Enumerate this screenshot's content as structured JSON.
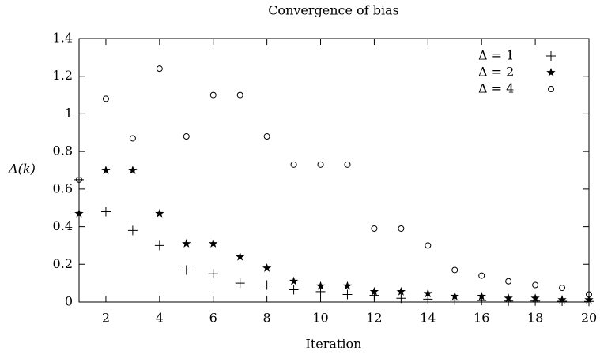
{
  "chart_data": {
    "type": "scatter",
    "title": "Convergence of bias",
    "xlabel": "Iteration",
    "ylabel": "A(k)",
    "x": [
      1,
      2,
      3,
      4,
      5,
      6,
      7,
      8,
      9,
      10,
      11,
      12,
      13,
      14,
      15,
      16,
      17,
      18,
      19,
      20
    ],
    "xlim": [
      1,
      20
    ],
    "xticks": [
      2,
      4,
      6,
      8,
      10,
      12,
      14,
      16,
      18,
      20
    ],
    "ylim": [
      0,
      1.4
    ],
    "yticks": [
      0,
      0.2,
      0.4,
      0.6,
      0.8,
      1,
      1.2,
      1.4
    ],
    "legend": "upper right",
    "series": [
      {
        "name": "Δ = 1",
        "marker": "plus",
        "color": "#000000",
        "values": [
          0.65,
          0.48,
          0.38,
          0.3,
          0.17,
          0.15,
          0.1,
          0.09,
          0.065,
          0.055,
          0.04,
          0.035,
          0.02,
          0.015,
          0.01,
          0.008,
          0.005,
          0.005,
          0.004,
          0.003
        ]
      },
      {
        "name": "Δ = 2",
        "marker": "star",
        "color": "#000000",
        "values": [
          0.47,
          0.7,
          0.7,
          0.47,
          0.31,
          0.31,
          0.24,
          0.18,
          0.11,
          0.085,
          0.085,
          0.055,
          0.055,
          0.045,
          0.03,
          0.03,
          0.02,
          0.02,
          0.012,
          0.012
        ]
      },
      {
        "name": "Δ = 4",
        "marker": "circle",
        "color": "#000000",
        "values": [
          0.65,
          1.08,
          0.87,
          1.24,
          0.88,
          1.1,
          1.1,
          0.88,
          0.73,
          0.73,
          0.73,
          0.39,
          0.39,
          0.3,
          0.17,
          0.14,
          0.11,
          0.09,
          0.075,
          0.04
        ]
      }
    ]
  }
}
